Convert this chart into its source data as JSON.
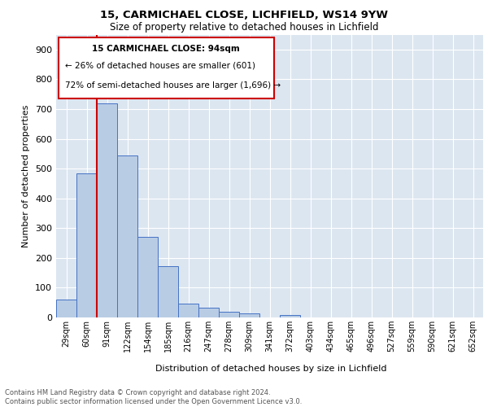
{
  "title1": "15, CARMICHAEL CLOSE, LICHFIELD, WS14 9YW",
  "title2": "Size of property relative to detached houses in Lichfield",
  "xlabel": "Distribution of detached houses by size in Lichfield",
  "ylabel": "Number of detached properties",
  "footer1": "Contains HM Land Registry data © Crown copyright and database right 2024.",
  "footer2": "Contains public sector information licensed under the Open Government Licence v3.0.",
  "annotation_line1": "15 CARMICHAEL CLOSE: 94sqm",
  "annotation_line2": "← 26% of detached houses are smaller (601)",
  "annotation_line3": "72% of semi-detached houses are larger (1,696) →",
  "bin_labels": [
    "29sqm",
    "60sqm",
    "91sqm",
    "122sqm",
    "154sqm",
    "185sqm",
    "216sqm",
    "247sqm",
    "278sqm",
    "309sqm",
    "341sqm",
    "372sqm",
    "403sqm",
    "434sqm",
    "465sqm",
    "496sqm",
    "527sqm",
    "559sqm",
    "590sqm",
    "621sqm",
    "652sqm"
  ],
  "bin_values": [
    60,
    483,
    719,
    544,
    272,
    171,
    47,
    33,
    20,
    15,
    0,
    9,
    0,
    0,
    0,
    0,
    0,
    0,
    0,
    0,
    0
  ],
  "bar_color": "#b8cce4",
  "bar_edge_color": "#4472c4",
  "vline_color": "#cc0000",
  "vline_bin_index": 2,
  "ylim": [
    0,
    950
  ],
  "yticks": [
    0,
    100,
    200,
    300,
    400,
    500,
    600,
    700,
    800,
    900
  ],
  "bg_color": "#dce6f1",
  "annotation_box_color": "#cc0000",
  "grid_color": "#ffffff"
}
